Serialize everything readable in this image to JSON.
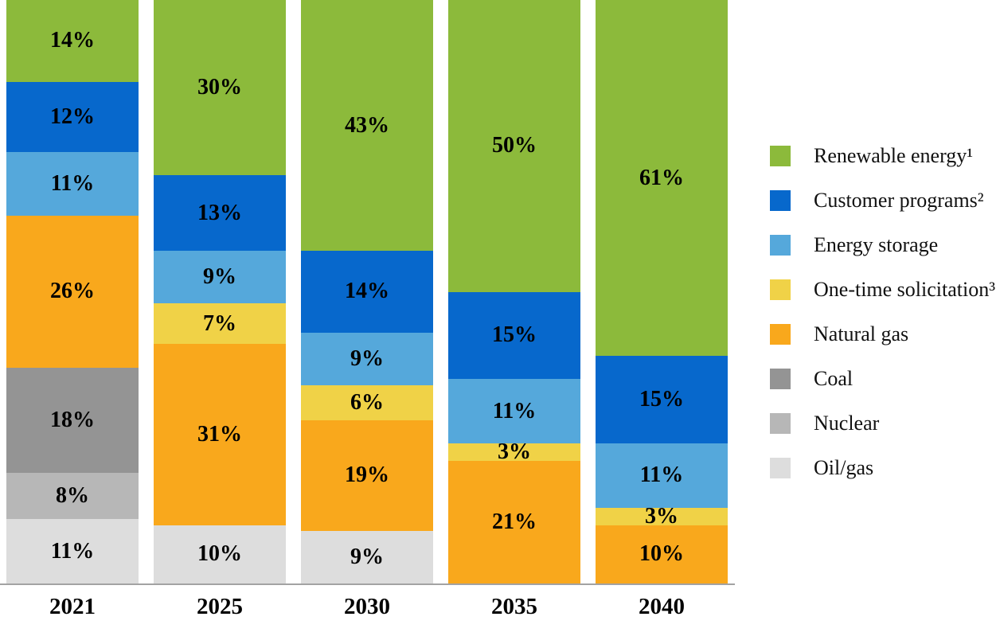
{
  "chart_data": {
    "type": "bar",
    "stacked": true,
    "orientation": "vertical",
    "unit": "%",
    "grid": false,
    "legend_position": "right",
    "ylim": [
      0,
      100
    ],
    "categories": [
      "2021",
      "2025",
      "2030",
      "2035",
      "2040"
    ],
    "series": [
      {
        "key": "renewable-energy",
        "name": "Renewable energy¹",
        "color": "#8CBA3B",
        "values": [
          14,
          30,
          43,
          50,
          61
        ]
      },
      {
        "key": "customer-programs",
        "name": "Customer programs²",
        "color": "#0768CC",
        "values": [
          12,
          13,
          14,
          15,
          15
        ]
      },
      {
        "key": "energy-storage",
        "name": "Energy storage",
        "color": "#55A8DB",
        "values": [
          11,
          9,
          9,
          11,
          11
        ]
      },
      {
        "key": "one-time-solicitation",
        "name": "One-time solicitation³",
        "color": "#F0D247",
        "values": [
          0,
          7,
          6,
          3,
          3
        ]
      },
      {
        "key": "natural-gas",
        "name": "Natural gas",
        "color": "#F9A81C",
        "values": [
          26,
          31,
          19,
          21,
          10
        ]
      },
      {
        "key": "coal",
        "name": "Coal",
        "color": "#949494",
        "values": [
          18,
          0,
          0,
          0,
          0
        ]
      },
      {
        "key": "nuclear",
        "name": "Nuclear",
        "color": "#B7B7B7",
        "values": [
          8,
          0,
          0,
          0,
          0
        ]
      },
      {
        "key": "oil-gas",
        "name": "Oil/gas",
        "color": "#DDDDDD",
        "values": [
          11,
          10,
          9,
          0,
          0
        ]
      }
    ],
    "axis_line_color": "#A3A3A3",
    "bar_label_format": "{value}%"
  }
}
